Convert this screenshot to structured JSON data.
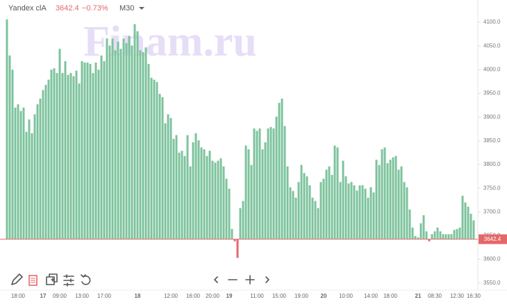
{
  "chart_data": {
    "type": "bar",
    "symbol": "Yandex clA",
    "last_price": 3642.4,
    "change": "−0.73%",
    "timeframe": "M30",
    "watermark": "Finam.ru",
    "up_color": "#7cc39c",
    "down_color": "#e4676a",
    "ylim": [
      3535,
      4147
    ],
    "yticks": [
      {
        "value": 3550,
        "label": "3550.0"
      },
      {
        "value": 3600,
        "label": "3600.0"
      },
      {
        "value": 3650,
        "label": "3650.0"
      },
      {
        "value": 3700,
        "label": "3700.0"
      },
      {
        "value": 3750,
        "label": "3750.0"
      },
      {
        "value": 3800,
        "label": "3800.0"
      },
      {
        "value": 3850,
        "label": "3850.0"
      },
      {
        "value": 3900,
        "label": "3900.0"
      },
      {
        "value": 3950,
        "label": "3950.0"
      },
      {
        "value": 4000,
        "label": "4000.0"
      },
      {
        "value": 4050,
        "label": "4050.0"
      },
      {
        "value": 4100,
        "label": "4100.0"
      }
    ],
    "categories": [
      null,
      null,
      null,
      null,
      "18:00",
      null,
      null,
      null,
      null,
      null,
      null,
      null,
      null,
      "17",
      null,
      null,
      null,
      null,
      null,
      "09:00",
      null,
      null,
      null,
      null,
      null,
      null,
      null,
      "13:00",
      null,
      null,
      null,
      null,
      null,
      null,
      null,
      "17:00",
      null,
      null,
      null,
      null,
      null,
      null,
      null,
      null,
      null,
      null,
      null,
      "18",
      null,
      null,
      null,
      null,
      null,
      null,
      null,
      null,
      null,
      null,
      null,
      "12:00",
      null,
      null,
      null,
      null,
      null,
      null,
      null,
      "16:00",
      null,
      null,
      null,
      null,
      null,
      null,
      "20:00",
      null,
      null,
      null,
      null,
      null,
      "19",
      null,
      null,
      null,
      null,
      null,
      null,
      null,
      null,
      null,
      "11:00",
      null,
      null,
      null,
      null,
      null,
      null,
      null,
      "15:00",
      null,
      null,
      null,
      null,
      null,
      null,
      null,
      "19:00",
      null,
      null,
      null,
      null,
      null,
      null,
      null,
      "20",
      null,
      null,
      null,
      null,
      null,
      null,
      null,
      "10:00",
      null,
      null,
      null,
      null,
      null,
      null,
      null,
      null,
      "14:00",
      null,
      null,
      null,
      null,
      null,
      null,
      "18:00",
      null,
      null,
      null,
      null,
      null,
      null,
      null,
      null,
      null,
      "21",
      null,
      null,
      null,
      null,
      null,
      "08:30",
      null,
      null,
      null,
      null,
      null,
      null,
      null,
      "12:30",
      null,
      null,
      null,
      null,
      null,
      "16:30"
    ],
    "values": [
      4106,
      4030,
      4000,
      3920,
      3927,
      3913,
      3920,
      3869,
      3895,
      3866,
      3906,
      3927,
      3939,
      3957,
      3968,
      3979,
      4000,
      4003,
      3993,
      4044,
      3993,
      4018,
      3989,
      3993,
      3986,
      3998,
      3971,
      4018,
      4015,
      4015,
      4012,
      3993,
      4015,
      4000,
      4030,
      4018,
      4066,
      4051,
      4066,
      4041,
      4059,
      4044,
      4066,
      4056,
      4071,
      4051,
      4096,
      4081,
      4041,
      4037,
      4047,
      4012,
      3983,
      3979,
      3974,
      3949,
      3942,
      3887,
      3906,
      3898,
      3854,
      3862,
      3825,
      3829,
      3818,
      3862,
      3796,
      3847,
      3866,
      3851,
      3836,
      3832,
      3818,
      3829,
      3808,
      3804,
      3808,
      3813,
      3796,
      3770,
      3749,
      3664,
      3638,
      3603,
      3708,
      3723,
      3840,
      3832,
      3799,
      3876,
      3871,
      3876,
      3832,
      3847,
      3876,
      3879,
      3876,
      3901,
      3930,
      3939,
      3881,
      3796,
      3752,
      3744,
      3730,
      3763,
      3799,
      3782,
      3775,
      3756,
      3730,
      3723,
      3708,
      3763,
      3770,
      3789,
      3796,
      3778,
      3840,
      3836,
      3763,
      3808,
      3775,
      3760,
      3763,
      3756,
      3745,
      3756,
      3756,
      3749,
      3730,
      3752,
      3741,
      3810,
      3799,
      3832,
      3836,
      3803,
      3810,
      3815,
      3818,
      3789,
      3796,
      3763,
      3752,
      3705,
      3667,
      3649,
      3646,
      3676,
      3693,
      3659,
      3638,
      3653,
      3659,
      3667,
      3659,
      3653,
      3653,
      3653,
      3653,
      3662,
      3664,
      3667,
      3734,
      3720,
      3711,
      3696,
      3682
    ]
  }
}
